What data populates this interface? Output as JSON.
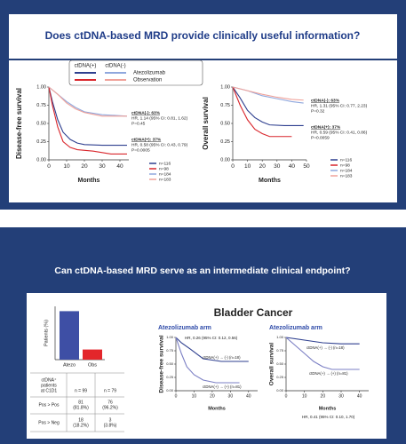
{
  "slides": [
    {
      "title": "Does ctDNA-based MRD provide clinically useful information?",
      "legend": {
        "headers": [
          "ctDNA(+)",
          "ctDNA(-)"
        ],
        "rows": [
          "Atezolizumab",
          "Observation"
        ]
      }
    },
    {
      "title": "Can ctDNA-based MRD serve as an intermediate clinical endpoint?",
      "subtitle": "Bladder Cancer"
    }
  ],
  "table": {
    "head": {
      "label": [
        "ctDNA⁺",
        "patients",
        "at C1D1"
      ],
      "cells": [
        "n = 99",
        "n = 79"
      ]
    },
    "rows": [
      {
        "label": "Pos > Pos",
        "cells": [
          [
            "81",
            "(81.8%)"
          ],
          [
            "76",
            "(96.2%)"
          ]
        ]
      },
      {
        "label": "Pos > Neg",
        "cells": [
          [
            "18",
            "(18.2%)"
          ],
          [
            "3",
            "(3.8%)"
          ]
        ]
      }
    ]
  },
  "chart_data": [
    {
      "type": "line",
      "ylabel": "Disease-free survival",
      "xlabel": "Months",
      "xlim": [
        0,
        45
      ],
      "ylim": [
        0,
        1
      ],
      "xticks": [
        0,
        10,
        20,
        30,
        40
      ],
      "yticks": [
        {
          "value": 0,
          "label": "0.00"
        },
        {
          "value": 0.25,
          "label": "0.25"
        },
        {
          "value": 0.5,
          "label": "0.50"
        },
        {
          "value": 0.75,
          "label": "0.75"
        },
        {
          "value": 1,
          "label": "1.00"
        }
      ],
      "series": [
        {
          "label": "n=116",
          "color": "#2e3f8f",
          "x": [
            0,
            2,
            5,
            8,
            12,
            16,
            20,
            30,
            44
          ],
          "values": [
            1,
            0.8,
            0.55,
            0.38,
            0.28,
            0.23,
            0.21,
            0.2,
            0.2
          ]
        },
        {
          "label": "n=98",
          "color": "#d9262c",
          "x": [
            0,
            2,
            5,
            8,
            12,
            16,
            25,
            35,
            44
          ],
          "values": [
            1,
            0.75,
            0.45,
            0.25,
            0.17,
            0.14,
            0.12,
            0.08,
            0.08
          ]
        },
        {
          "label": "n=184",
          "color": "#8fa7dd",
          "x": [
            0,
            5,
            10,
            15,
            20,
            30,
            44
          ],
          "values": [
            1,
            0.9,
            0.8,
            0.72,
            0.66,
            0.62,
            0.6
          ]
        },
        {
          "label": "n=183",
          "color": "#f0a29a",
          "x": [
            0,
            5,
            10,
            15,
            20,
            30,
            44
          ],
          "values": [
            1,
            0.9,
            0.78,
            0.7,
            0.65,
            0.6,
            0.6
          ]
        }
      ],
      "annotations": [
        "ctDNA(-): 63%",
        "HR, 1.14 (95% CI: 0.81, 1.62)",
        "P=0.45",
        "ctDNA(+): 37%",
        "HR, 0.58 (95% CI: 0.43, 0.79)",
        "P=0.0005"
      ]
    },
    {
      "type": "line",
      "ylabel": "Overall survival",
      "xlabel": "Months",
      "xlim": [
        0,
        50
      ],
      "ylim": [
        0,
        1
      ],
      "xticks": [
        0,
        10,
        20,
        30,
        40,
        50
      ],
      "yticks": [
        {
          "value": 0,
          "label": "0.00"
        },
        {
          "value": 0.25,
          "label": "0.25"
        },
        {
          "value": 0.5,
          "label": "0.50"
        },
        {
          "value": 0.75,
          "label": "0.75"
        },
        {
          "value": 1,
          "label": "1.00"
        }
      ],
      "series": [
        {
          "label": "n=116",
          "color": "#2e3f8f",
          "x": [
            0,
            5,
            10,
            15,
            20,
            25,
            35,
            48
          ],
          "values": [
            1,
            0.85,
            0.68,
            0.58,
            0.52,
            0.48,
            0.47,
            0.47
          ]
        },
        {
          "label": "n=98",
          "color": "#d9262c",
          "x": [
            0,
            5,
            10,
            15,
            20,
            25,
            40
          ],
          "values": [
            1,
            0.75,
            0.55,
            0.42,
            0.36,
            0.32,
            0.32
          ]
        },
        {
          "label": "n=184",
          "color": "#8fa7dd",
          "x": [
            0,
            10,
            20,
            30,
            40,
            48
          ],
          "values": [
            1,
            0.95,
            0.88,
            0.84,
            0.8,
            0.78
          ]
        },
        {
          "label": "n=183",
          "color": "#f0a29a",
          "x": [
            0,
            10,
            20,
            30,
            40,
            48
          ],
          "values": [
            1,
            0.95,
            0.9,
            0.86,
            0.83,
            0.82
          ]
        }
      ],
      "annotations": [
        "ctDNA(-): 63%",
        "HR, 1.31 (95% CI: 0.77, 2.23)",
        "P=0.32",
        "ctDNA(+): 37%",
        "HR, 0.59 (95% CI: 0.41, 0.86)",
        "P=0.0059"
      ]
    },
    {
      "type": "bar",
      "ylabel": "Patients (%)",
      "categories": [
        "Atezo",
        "Obs"
      ],
      "values": [
        18.2,
        3.8
      ],
      "colors": [
        "#3e4fa5",
        "#e3262b"
      ],
      "ylim": [
        0,
        20
      ]
    },
    {
      "type": "line",
      "title": "Atezolizumab arm",
      "ylabel": "Disease-free survival",
      "xlabel": "Months",
      "xlim": [
        0,
        45
      ],
      "ylim": [
        0,
        1
      ],
      "xticks": [
        0,
        10,
        20,
        30,
        40
      ],
      "yticks": [
        {
          "value": 0,
          "label": "0.00"
        },
        {
          "value": 0.25,
          "label": "0.25"
        },
        {
          "value": 0.5,
          "label": "0.50"
        },
        {
          "value": 0.75,
          "label": "0.75"
        },
        {
          "value": 1,
          "label": "1.00"
        }
      ],
      "series": [
        {
          "label": "ctDNA(+) → (-) (n=18)",
          "color": "#2e3f8f",
          "x": [
            0,
            3,
            8,
            15,
            25,
            40
          ],
          "values": [
            1,
            0.9,
            0.78,
            0.6,
            0.55,
            0.55
          ]
        },
        {
          "label": "ctDNA(+) → (+) (n=81)",
          "color": "#7b7fc4",
          "x": [
            0,
            3,
            6,
            10,
            15,
            22,
            35
          ],
          "values": [
            1,
            0.7,
            0.45,
            0.3,
            0.2,
            0.15,
            0.15
          ]
        }
      ],
      "annotations": [
        "HR, 0.26 (95% CI: 0.12, 0.56)"
      ]
    },
    {
      "type": "line",
      "title": "Atezolizumab arm",
      "ylabel": "Overall survival",
      "xlabel": "Months",
      "xlim": [
        0,
        45
      ],
      "ylim": [
        0,
        1
      ],
      "xticks": [
        0,
        10,
        20,
        30,
        40
      ],
      "yticks": [
        {
          "value": 0,
          "label": "0.00"
        },
        {
          "value": 0.25,
          "label": "0.25"
        },
        {
          "value": 0.5,
          "label": "0.50"
        },
        {
          "value": 0.75,
          "label": "0.75"
        },
        {
          "value": 1,
          "label": "1.00"
        }
      ],
      "series": [
        {
          "label": "ctDNA(+) → (-) (n=18)",
          "color": "#2e3f8f",
          "x": [
            0,
            10,
            20,
            30,
            40
          ],
          "values": [
            1,
            0.95,
            0.9,
            0.88,
            0.88
          ]
        },
        {
          "label": "ctDNA(+) → (+) (n=81)",
          "color": "#7b7fc4",
          "x": [
            0,
            5,
            10,
            15,
            20,
            25,
            40
          ],
          "values": [
            1,
            0.85,
            0.7,
            0.55,
            0.45,
            0.4,
            0.4
          ]
        }
      ],
      "annotations": [
        "HR, 0.41 (95% CI: 0.10, 1.70)"
      ]
    }
  ]
}
